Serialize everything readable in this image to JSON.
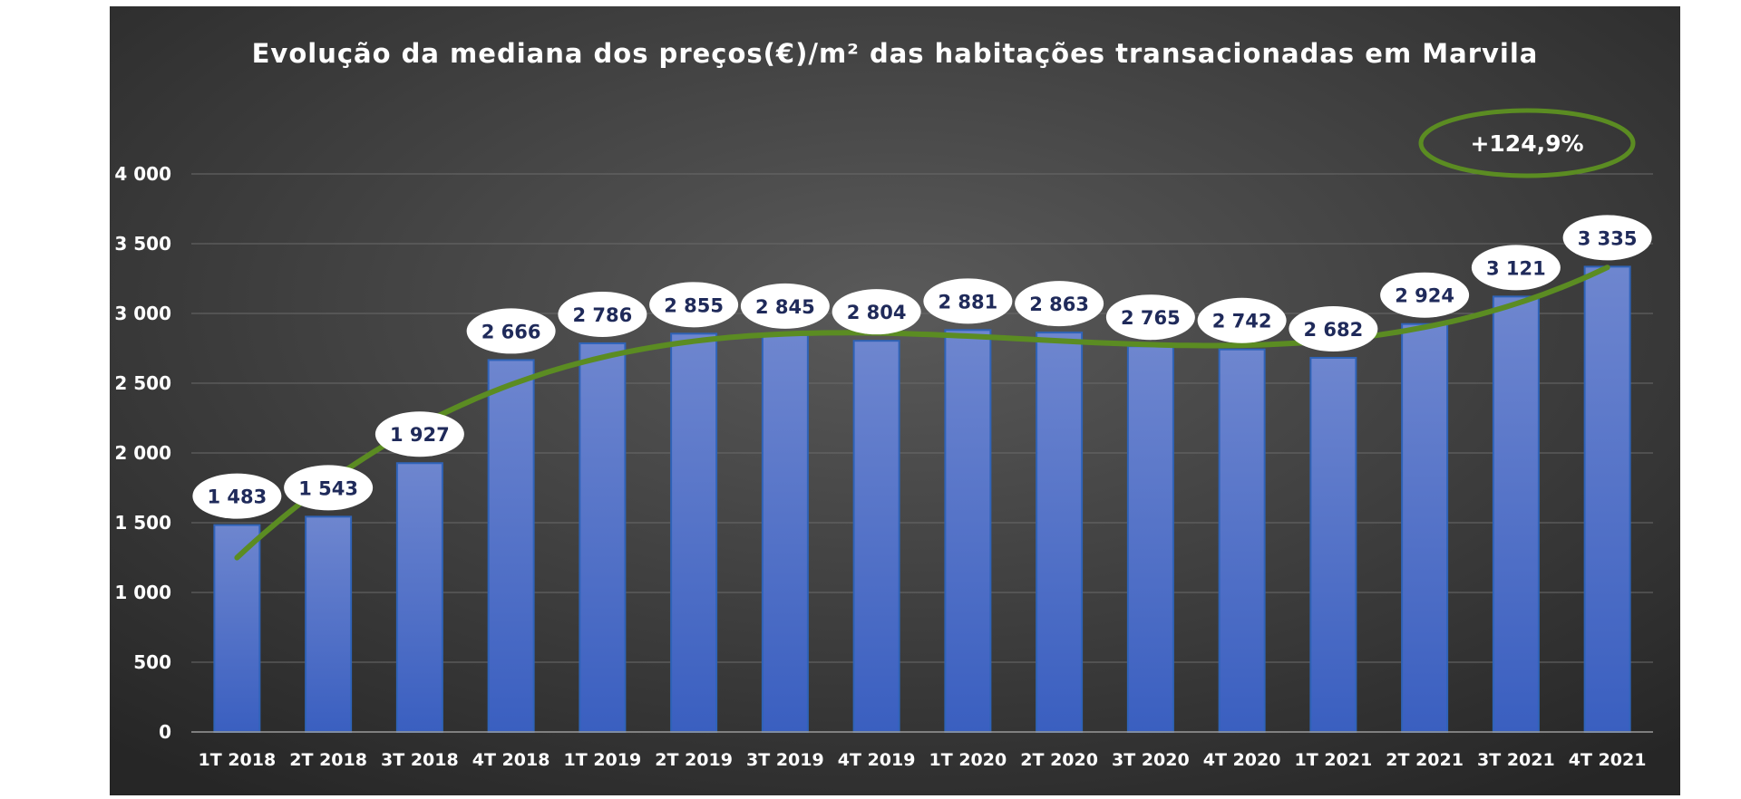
{
  "chart_data": {
    "type": "bar",
    "title": "Evolução da mediana dos preços(€)/m² das habitações transacionadas em Marvila",
    "xlabel": "",
    "ylabel": "",
    "categories": [
      "1T 2018",
      "2T 2018",
      "3T 2018",
      "4T 2018",
      "1T 2019",
      "2T 2019",
      "3T 2019",
      "4T 2019",
      "1T 2020",
      "2T 2020",
      "3T 2020",
      "4T 2020",
      "1T 2021",
      "2T 2021",
      "3T 2021",
      "4T 2021"
    ],
    "values": [
      1483,
      1543,
      1927,
      2666,
      2786,
      2855,
      2845,
      2804,
      2881,
      2863,
      2765,
      2742,
      2682,
      2924,
      3121,
      3335
    ],
    "value_labels": [
      "1 483",
      "1 543",
      "1 927",
      "2 666",
      "2 786",
      "2 855",
      "2 845",
      "2 804",
      "2 881",
      "2 863",
      "2 765",
      "2 742",
      "2 682",
      "2 924",
      "3 121",
      "3 335"
    ],
    "ylim": [
      0,
      4000
    ],
    "yticks": [
      0,
      500,
      1000,
      1500,
      2000,
      2500,
      3000,
      3500,
      4000
    ],
    "ytick_labels": [
      "0",
      "500",
      "1 000",
      "1 500",
      "2 000",
      "2 500",
      "3 000",
      "3 500",
      "4 000"
    ],
    "grid": true,
    "legend": "none",
    "trendline": "polynomial",
    "annotation": "+124,9%",
    "colors": {
      "background_center": "#5a5a5a",
      "background_edge": "#262626",
      "bar_top": "#6e86cf",
      "bar_bottom": "#3a5fc0",
      "bar_border": "#2f63b8",
      "trendline": "#5b8c22",
      "label_bubble": "#ffffff",
      "label_text": "#1f2a5a",
      "text": "#ffffff",
      "gridline": "#6a6a6a"
    }
  }
}
